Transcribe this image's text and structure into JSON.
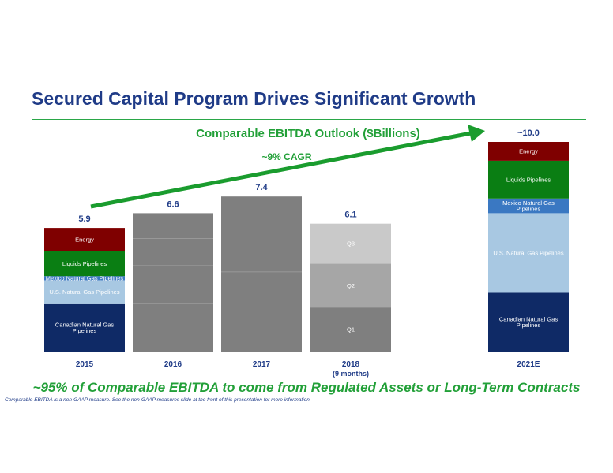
{
  "title": "Secured Capital Program Drives Significant Growth",
  "subtitle": "~95% of Comparable EBITDA to come from Regulated Assets or Long-Term Contracts",
  "footnote": "Comparable EBITDA is a non-GAAP measure. See the non-GAAP measures slide at the front of this presentation for more information.",
  "colors": {
    "energy": "#7f0000",
    "liquids": "#0a7e13",
    "mexico": "#3a78c2",
    "us_gas": "#a8c8e2",
    "canadian": "#0f2a66",
    "gray_bar": "#7f7f7f",
    "q1": "#7f7f7f",
    "q2": "#a6a6a6",
    "q3": "#c9c9c9",
    "arrow": "#1a9c2e",
    "navy_text": "#1f3b87"
  },
  "chart_data": {
    "type": "bar",
    "title": "Comparable EBITDA Outlook ($Billions)",
    "annotation": "~9% CAGR",
    "categories": [
      "2015",
      "2016",
      "2017",
      "2018",
      "2021E"
    ],
    "category_notes": [
      "",
      "",
      "",
      "(9 months)",
      ""
    ],
    "totals": [
      5.9,
      6.6,
      7.4,
      6.1,
      10.0
    ],
    "total_labels": [
      "5.9",
      "6.6",
      "7.4",
      "6.1",
      "~10.0"
    ],
    "stacks": [
      {
        "category": "2015",
        "segments": [
          {
            "name": "Canadian Natural Gas Pipelines",
            "value": 2.3
          },
          {
            "name": "U.S. Natural Gas Pipelines",
            "value": 1.1
          },
          {
            "name": "Mexico Natural Gas Pipelines",
            "value": 0.2
          },
          {
            "name": "Liquids Pipelines",
            "value": 1.2
          },
          {
            "name": "Energy",
            "value": 1.1
          }
        ]
      },
      {
        "category": "2016",
        "segments": [
          {
            "name": "",
            "value": 2.3
          },
          {
            "name": "",
            "value": 1.8
          },
          {
            "name": "",
            "value": 1.3
          },
          {
            "name": "",
            "value": 1.2
          }
        ]
      },
      {
        "category": "2017",
        "segments": [
          {
            "name": "",
            "value": 3.8
          },
          {
            "name": "",
            "value": 3.6
          }
        ]
      },
      {
        "category": "2018",
        "segments": [
          {
            "name": "Q1",
            "value": 2.1
          },
          {
            "name": "Q2",
            "value": 2.1
          },
          {
            "name": "Q3",
            "value": 1.9
          }
        ]
      },
      {
        "category": "2021E",
        "segments": [
          {
            "name": "Canadian Natural Gas Pipelines",
            "value": 2.8
          },
          {
            "name": "U.S. Natural Gas Pipelines",
            "value": 3.8
          },
          {
            "name": "Mexico Natural Gas Pipelines",
            "value": 0.7
          },
          {
            "name": "Liquids Pipelines",
            "value": 1.8
          },
          {
            "name": "Energy",
            "value": 0.9
          }
        ]
      }
    ],
    "ylim": [
      0,
      11.5
    ],
    "grid": false
  }
}
